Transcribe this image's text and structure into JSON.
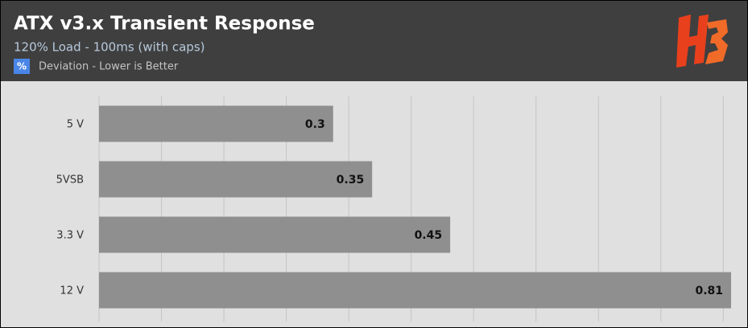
{
  "chart_data": {
    "type": "bar",
    "orientation": "horizontal",
    "title": "ATX v3.x Transient Response",
    "subtitle": "120% Load - 100ms (with caps)",
    "legend_icon": "%",
    "series": [
      {
        "name": "Deviation - Lower is Better",
        "color": "#8f8f8f",
        "values": [
          0.3,
          0.35,
          0.45,
          0.81
        ]
      }
    ],
    "categories": [
      "5 V",
      "5VSB",
      "3.3 V",
      "12 V"
    ],
    "xlim": [
      0,
      0.81
    ],
    "xticks": [
      0,
      0.08,
      0.16,
      0.24,
      0.32,
      0.4,
      0.48,
      0.56,
      0.64,
      0.72,
      0.8
    ],
    "grid": true
  }
}
